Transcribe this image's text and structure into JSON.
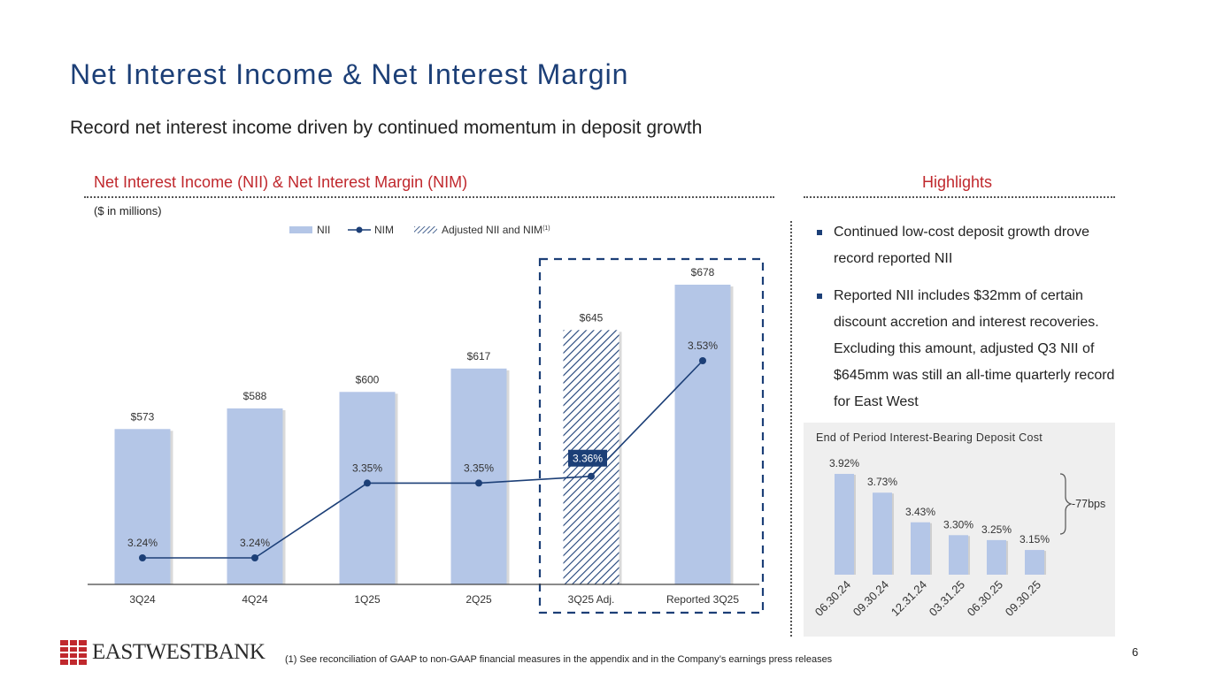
{
  "header": {
    "title": "Net Interest Income & Net Interest Margin",
    "subtitle": "Record net interest income driven by continued momentum in deposit growth"
  },
  "left_section": {
    "heading": "Net Interest Income (NII) & Net Interest Margin (NIM)",
    "units": "($ in millions)"
  },
  "right_section": {
    "heading": "Highlights"
  },
  "highlights": [
    "Continued low-cost deposit growth drove record reported NII",
    "Reported NII includes $32mm of certain discount accretion and interest recoveries. Excluding this amount, adjusted Q3 NII of $645mm was still an all-time quarterly record for East West"
  ],
  "colors": {
    "bar": "#b4c6e7",
    "line": "#1c3f77",
    "accent": "#c0282d",
    "label_box": "#1c3f77"
  },
  "chart_data": [
    {
      "type": "bar",
      "title": "",
      "xlabel": "",
      "ylabel": "",
      "categories": [
        "3Q24",
        "4Q24",
        "1Q25",
        "2Q25",
        "3Q25 Adj.",
        "Reported 3Q25"
      ],
      "series": [
        {
          "name": "NII",
          "values": [
            573,
            588,
            600,
            617,
            645,
            678
          ],
          "labels": [
            "$573",
            "$588",
            "$600",
            "$617",
            "$645",
            "$678"
          ],
          "hatched": [
            false,
            false,
            false,
            false,
            true,
            false
          ]
        },
        {
          "name": "NIM",
          "type": "line",
          "values": [
            3.24,
            3.24,
            3.35,
            3.35,
            3.36,
            3.53
          ],
          "labels": [
            "3.24%",
            "3.24%",
            "3.35%",
            "3.35%",
            "3.36%",
            "3.53%"
          ]
        }
      ],
      "legend": {
        "items": [
          "NII",
          "NIM",
          "Adjusted NII and NIM"
        ],
        "superscript": "(1)",
        "position": "top"
      },
      "highlight_box": "3Q25 Adj. and Reported 3Q25"
    },
    {
      "type": "bar",
      "title": "End of Period Interest-Bearing Deposit Cost",
      "categories": [
        "06.30.24",
        "09.30.24",
        "12.31.24",
        "03.31.25",
        "06.30.25",
        "09.30.25"
      ],
      "values": [
        3.92,
        3.73,
        3.43,
        3.3,
        3.25,
        3.15
      ],
      "labels": [
        "3.92%",
        "3.73%",
        "3.43%",
        "3.30%",
        "3.25%",
        "3.15%"
      ],
      "annotation": "-77bps"
    }
  ],
  "footer": {
    "footnote": "(1)   See reconciliation of GAAP to non-GAAP financial measures in the appendix and in the Company’s earnings press releases",
    "page_number": "6",
    "logo_text": "EASTWESTBANK"
  }
}
